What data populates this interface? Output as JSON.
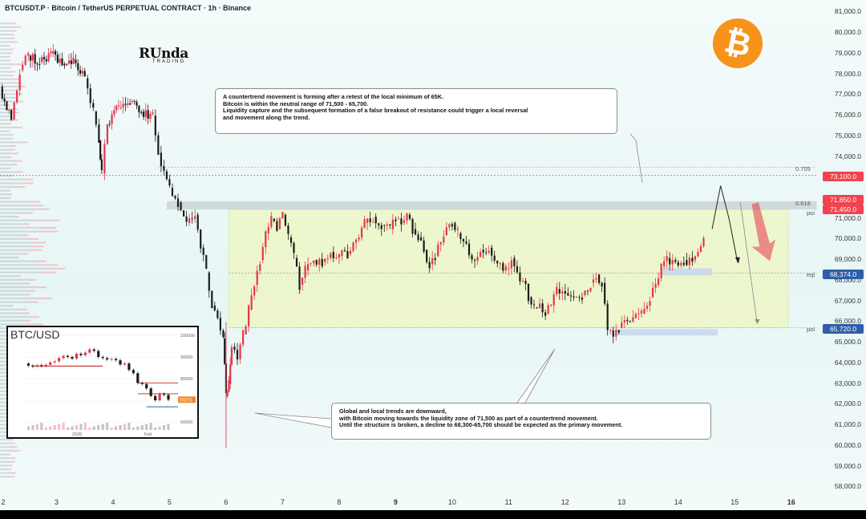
{
  "header": {
    "title": "BTCUSDT.P · Bitcoin / TetherUS PERPETUAL CONTRACT · 1h · Binance"
  },
  "logo": {
    "main": "RUnda",
    "sub": "TRADING"
  },
  "badge": {
    "symbol": "₿",
    "color": "#f7931a"
  },
  "annotations": {
    "top": [
      "A countertrend movement is forming after a retest of the local minimum of 65K.",
      "Bitcoin is within the neutral range of 71,500 - 65,700.",
      "Liquidity capture and the subsequent formation of a false breakout of resistance could trigger a local reversal",
      "and movement along the trend."
    ],
    "bottom": [
      "Global and local trends are downward,",
      "with Bitcoin moving towards the liquidity zone of 71,500 as part of a countertrend movement.",
      "Until the structure is broken, a decline to 68,300-65,700 should be expected as the primary movement."
    ]
  },
  "inset": {
    "title": "BTC/USD",
    "y_ticks": [
      "100000",
      "90000",
      "80000",
      "70000",
      "60000"
    ],
    "x_ticks": [
      "2026",
      "Feb"
    ],
    "price_tag": "70276"
  },
  "levels": {
    "fib_705": "0.705",
    "fib_618": "0.618",
    "poi_upper": "poi",
    "eql": "eql",
    "poi_lower": "poi"
  },
  "tags": {
    "t73100": "73,100.0",
    "t71850": "71,850.0",
    "t71450": "71,450.0",
    "t68374": "68,374.0",
    "t65720": "65,720.0"
  },
  "colors": {
    "up": "#e8344a",
    "down": "#1c1c1c",
    "range": "#eef7c7",
    "red_tag": "#f0434f",
    "blue_tag": "#2f5ea8"
  },
  "chart_data": {
    "type": "candlestick",
    "title": "BTCUSDT.P · Bitcoin / TetherUS PERPETUAL CONTRACT · 1h · Binance",
    "y_axis": {
      "ticks": [
        81000,
        80000,
        79000,
        78000,
        77000,
        76000,
        75000,
        74000,
        73000,
        72000,
        71000,
        70000,
        69000,
        68000,
        67000,
        66000,
        65000,
        64000,
        63000,
        62000,
        61000,
        60000,
        59000,
        58000
      ],
      "labels": [
        "81,000.0",
        "80,000.0",
        "79,000.0",
        "78,000.0",
        "77,000.0",
        "76,000.0",
        "75,000.0",
        "74,000.0",
        "73,000.0",
        "72,000.0",
        "71,000.0",
        "70,000.0",
        "69,000.0",
        "68,000.0",
        "67,000.0",
        "66,000.0",
        "65,000.0",
        "64,000.0",
        "63,000.0",
        "62,000.0",
        "61,000.0",
        "60,000.0",
        "59,000.0",
        "58,000.0"
      ],
      "range": [
        57700,
        81600
      ]
    },
    "x_axis": {
      "ticks": [
        2,
        3,
        4,
        5,
        6,
        7,
        8,
        9,
        10,
        11,
        12,
        13,
        14,
        15,
        16
      ],
      "labels": [
        "2",
        "3",
        "4",
        "5",
        "6",
        "7",
        "8",
        "9",
        "10",
        "11",
        "12",
        "13",
        "14",
        "15",
        "16"
      ],
      "bold": [
        "9",
        "16"
      ],
      "range": [
        2,
        16.5
      ]
    },
    "levels": [
      {
        "name": "0.705",
        "price": 73500
      },
      {
        "name": "73,100.0",
        "price": 73100
      },
      {
        "name": "0.618",
        "price": 71850
      },
      {
        "name": "poi",
        "price": 71450
      },
      {
        "name": "eql",
        "price": 68374
      },
      {
        "name": "poi",
        "price": 65720
      }
    ],
    "range_box": {
      "x_start": 6.05,
      "x_end": 15.95,
      "top": 71450,
      "bottom": 65720
    },
    "path_close": [
      [
        2.0,
        77400
      ],
      [
        2.2,
        75800
      ],
      [
        2.35,
        78200
      ],
      [
        2.5,
        78900
      ],
      [
        2.7,
        78600
      ],
      [
        2.9,
        79000
      ],
      [
        3.1,
        78500
      ],
      [
        3.3,
        78700
      ],
      [
        3.5,
        77800
      ],
      [
        3.65,
        76200
      ],
      [
        3.75,
        74800
      ],
      [
        3.8,
        73200
      ],
      [
        3.9,
        75600
      ],
      [
        4.1,
        76400
      ],
      [
        4.3,
        76700
      ],
      [
        4.5,
        76200
      ],
      [
        4.7,
        76000
      ],
      [
        4.8,
        74200
      ],
      [
        4.9,
        73300
      ],
      [
        5.0,
        72500
      ],
      [
        5.15,
        71800
      ],
      [
        5.3,
        70800
      ],
      [
        5.45,
        71200
      ],
      [
        5.55,
        69600
      ],
      [
        5.65,
        68400
      ],
      [
        5.75,
        66800
      ],
      [
        5.85,
        66200
      ],
      [
        5.95,
        65200
      ],
      [
        6.0,
        62400
      ],
      [
        6.05,
        63000
      ],
      [
        6.1,
        64800
      ],
      [
        6.2,
        64200
      ],
      [
        6.3,
        65400
      ],
      [
        6.4,
        66600
      ],
      [
        6.5,
        67800
      ],
      [
        6.6,
        69000
      ],
      [
        6.7,
        70300
      ],
      [
        6.8,
        71000
      ],
      [
        6.9,
        70500
      ],
      [
        7.0,
        71200
      ],
      [
        7.1,
        70100
      ],
      [
        7.2,
        69100
      ],
      [
        7.3,
        67800
      ],
      [
        7.4,
        68500
      ],
      [
        7.55,
        69000
      ],
      [
        7.7,
        68900
      ],
      [
        7.85,
        69400
      ],
      [
        8.0,
        69200
      ],
      [
        8.15,
        69300
      ],
      [
        8.3,
        70000
      ],
      [
        8.45,
        70800
      ],
      [
        8.6,
        71100
      ],
      [
        8.75,
        70700
      ],
      [
        8.9,
        70500
      ],
      [
        9.0,
        71000
      ],
      [
        9.1,
        70800
      ],
      [
        9.2,
        71200
      ],
      [
        9.3,
        70500
      ],
      [
        9.4,
        70100
      ],
      [
        9.5,
        69500
      ],
      [
        9.6,
        68800
      ],
      [
        9.7,
        69200
      ],
      [
        9.85,
        70200
      ],
      [
        10.0,
        70800
      ],
      [
        10.1,
        70300
      ],
      [
        10.2,
        69900
      ],
      [
        10.35,
        69000
      ],
      [
        10.5,
        69500
      ],
      [
        10.65,
        69600
      ],
      [
        10.8,
        68800
      ],
      [
        10.95,
        68600
      ],
      [
        11.05,
        69100
      ],
      [
        11.15,
        68400
      ],
      [
        11.25,
        68000
      ],
      [
        11.35,
        67200
      ],
      [
        11.45,
        66700
      ],
      [
        11.55,
        66900
      ],
      [
        11.65,
        66400
      ],
      [
        11.75,
        66800
      ],
      [
        11.85,
        67600
      ],
      [
        12.0,
        67400
      ],
      [
        12.15,
        67200
      ],
      [
        12.3,
        67300
      ],
      [
        12.45,
        67900
      ],
      [
        12.55,
        68300
      ],
      [
        12.65,
        67900
      ],
      [
        12.75,
        65600
      ],
      [
        12.85,
        65300
      ],
      [
        12.95,
        65700
      ],
      [
        13.05,
        66100
      ],
      [
        13.2,
        66200
      ],
      [
        13.35,
        66400
      ],
      [
        13.5,
        67200
      ],
      [
        13.6,
        67800
      ],
      [
        13.7,
        68700
      ],
      [
        13.8,
        69100
      ],
      [
        13.95,
        68900
      ],
      [
        14.1,
        69000
      ],
      [
        14.25,
        69000
      ],
      [
        14.35,
        69400
      ],
      [
        14.45,
        70000
      ]
    ],
    "projection": [
      [
        14.6,
        70500
      ],
      [
        14.75,
        72600
      ],
      [
        14.9,
        71000
      ],
      [
        15.05,
        68900
      ]
    ],
    "projection_down": [
      [
        15.1,
        71800
      ],
      [
        15.4,
        65900
      ]
    ],
    "inset_series": {
      "x_ticks": [
        "2026",
        "Feb"
      ],
      "y_range": [
        60000,
        100000
      ],
      "values": [
        87000,
        86000,
        85500,
        86200,
        85800,
        86400,
        87500,
        88000,
        89500,
        90500,
        90000,
        89200,
        91500,
        90800,
        92000,
        93500,
        92800,
        90000,
        89500,
        88800,
        89100,
        88500,
        86500,
        87000,
        84000,
        82500,
        78000,
        77500,
        75500,
        72000,
        70000,
        73000,
        72500,
        70276
      ]
    }
  }
}
